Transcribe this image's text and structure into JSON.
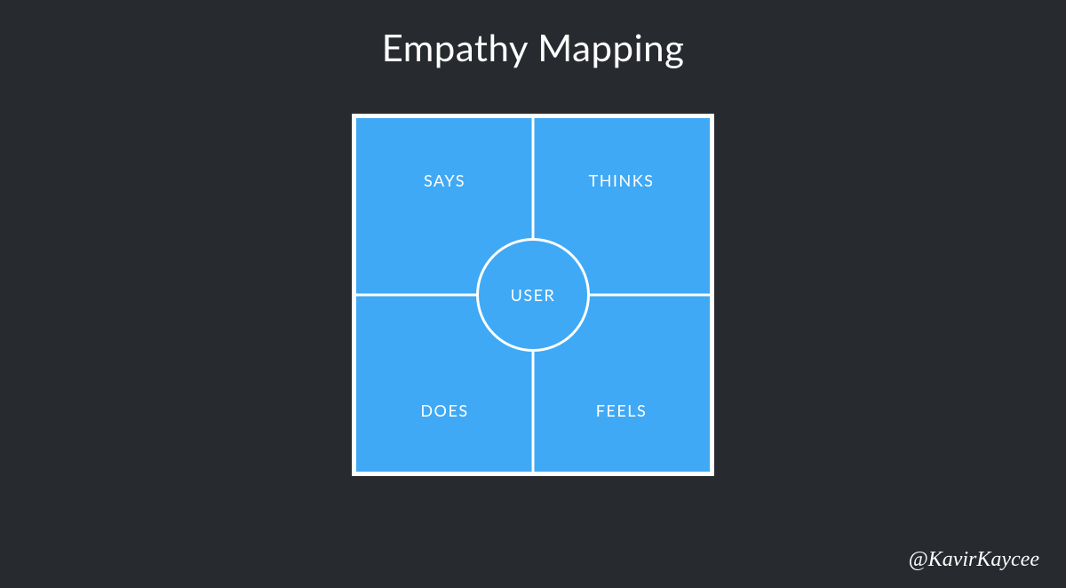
{
  "title": "Empathy Mapping",
  "diagram": {
    "type": "quadrant",
    "background_color": "#272a2f",
    "panel_color": "#3fa9f5",
    "border_color": "#ffffff",
    "text_color": "#ffffff",
    "divider_width": 3,
    "circle_diameter": 128,
    "panel_size": 408,
    "quadrants": {
      "top_left": "SAYS",
      "top_right": "THINKS",
      "bottom_left": "DOES",
      "bottom_right": "FEELS"
    },
    "center_label": "USER",
    "label_fontsize": 18,
    "title_fontsize": 42
  },
  "attribution": "@KavirKaycee"
}
